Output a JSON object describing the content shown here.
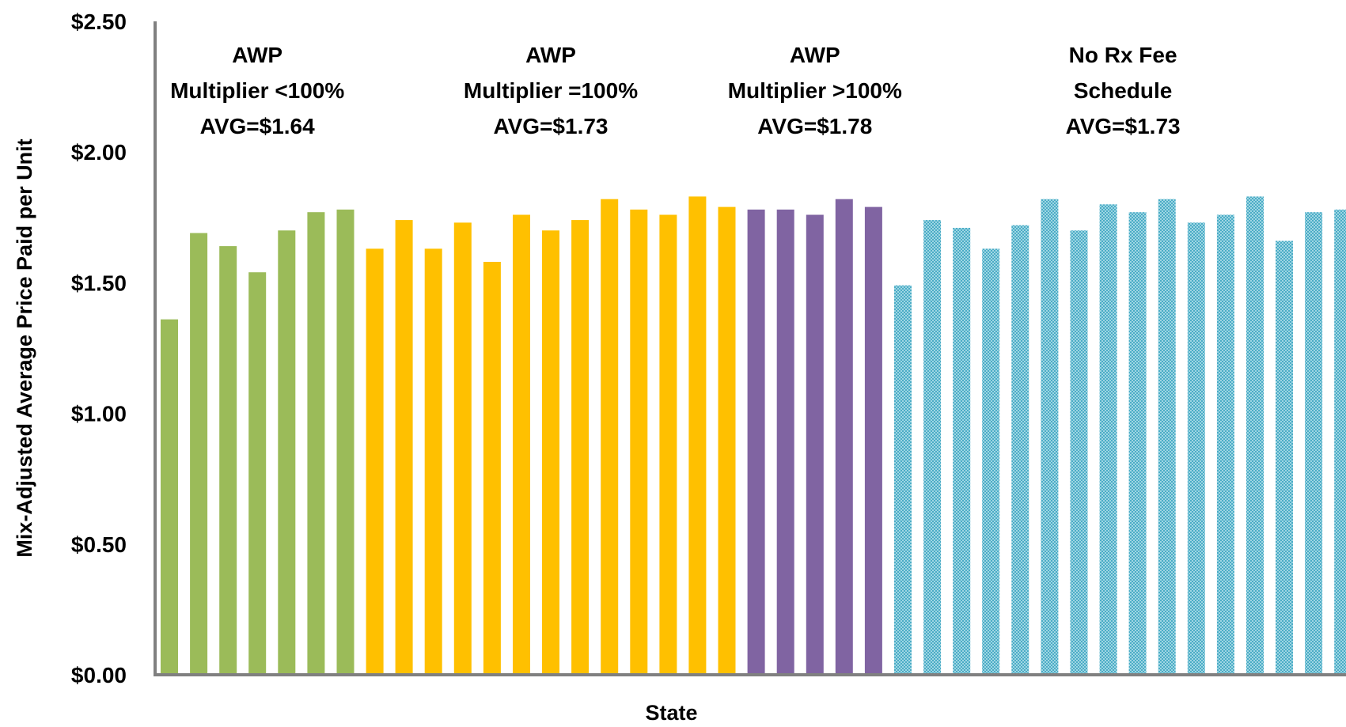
{
  "chart_data": {
    "type": "bar",
    "title": "",
    "xlabel": "State",
    "ylabel": "Mix-Adjusted Average Price Paid per Unit",
    "ylim": [
      0,
      2.5
    ],
    "yticks": [
      {
        "value": 0,
        "label": "$0.00"
      },
      {
        "value": 0.5,
        "label": "$0.50"
      },
      {
        "value": 1.0,
        "label": "$1.00"
      },
      {
        "value": 1.5,
        "label": "$1.50"
      },
      {
        "value": 2.0,
        "label": "$2.00"
      },
      {
        "value": 2.5,
        "label": "$2.50"
      }
    ],
    "grid": false,
    "groups": [
      {
        "lines": [
          "AWP",
          "Multiplier <100%",
          "AVG=$1.64"
        ],
        "color": "#9BBB59",
        "pattern": false,
        "values": [
          1.36,
          1.69,
          1.64,
          1.54,
          1.7,
          1.77,
          1.78
        ]
      },
      {
        "lines": [
          "AWP",
          "Multiplier =100%",
          "AVG=$1.73"
        ],
        "color": "#FFC000",
        "pattern": false,
        "values": [
          1.63,
          1.74,
          1.63,
          1.73,
          1.58,
          1.76,
          1.7,
          1.74,
          1.82,
          1.78,
          1.76,
          1.83,
          1.79
        ]
      },
      {
        "lines": [
          "AWP",
          "Multiplier >100%",
          "AVG=$1.78"
        ],
        "color": "#8064A2",
        "pattern": false,
        "values": [
          1.78,
          1.78,
          1.76,
          1.82,
          1.79
        ]
      },
      {
        "lines": [
          "No Rx Fee",
          "Schedule",
          "AVG=$1.73"
        ],
        "color": "#4BACC6",
        "pattern": true,
        "values": [
          1.49,
          1.74,
          1.71,
          1.63,
          1.72,
          1.82,
          1.7,
          1.8,
          1.77,
          1.82,
          1.73,
          1.76,
          1.83,
          1.66,
          1.77,
          1.78
        ]
      }
    ]
  }
}
